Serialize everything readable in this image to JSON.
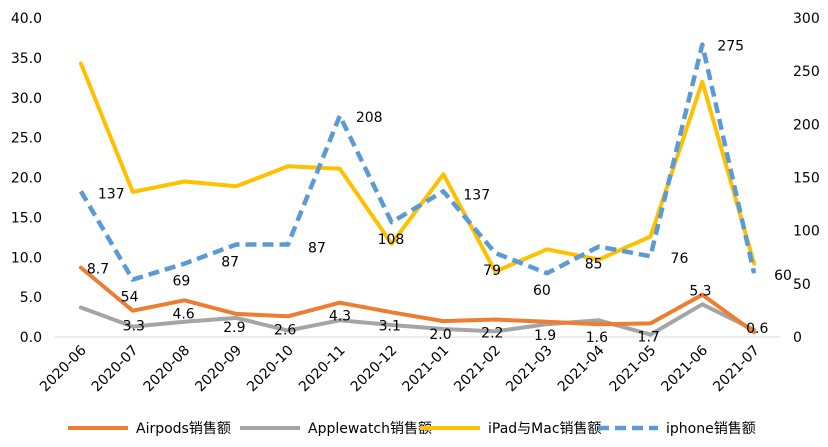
{
  "chart_data": {
    "type": "line",
    "title": "",
    "x": [
      "2020-06",
      "2020-07",
      "2020-08",
      "2020-09",
      "2020-10",
      "2020-11",
      "2020-12",
      "2021-01",
      "2021-02",
      "2021-03",
      "2021-04",
      "2021-05",
      "2021-06",
      "2021-07"
    ],
    "y_left": {
      "range": [
        0,
        40
      ],
      "ticks": [
        "0.0",
        "5.0",
        "10.0",
        "15.0",
        "20.0",
        "25.0",
        "30.0",
        "35.0",
        "40.0"
      ]
    },
    "y_right": {
      "range": [
        0,
        300
      ],
      "ticks": [
        "0",
        "50",
        "100",
        "150",
        "200",
        "250",
        "300"
      ]
    },
    "grid": false,
    "legend": "bottom",
    "series": [
      {
        "name": "Airpods销售额",
        "axis": "left",
        "color": "#ED7D31",
        "style": "solid",
        "values": [
          8.7,
          3.3,
          4.6,
          2.9,
          2.6,
          4.3,
          3.1,
          2.0,
          2.2,
          1.9,
          1.6,
          1.7,
          5.3,
          0.6
        ],
        "labels": [
          "8.7",
          "3.3",
          "4.6",
          "2.9",
          "2.6",
          "4.3",
          "3.1",
          "2.0",
          "2.2",
          "1.9",
          "1.6",
          "1.7",
          "5.3",
          "0.6"
        ]
      },
      {
        "name": "Applewatch销售额",
        "axis": "left",
        "color": "#A5A5A5",
        "style": "solid",
        "values": [
          3.7,
          1.3,
          1.9,
          2.4,
          0.8,
          2.1,
          1.5,
          1.0,
          0.7,
          1.6,
          2.1,
          0.3,
          4.1,
          0.9
        ]
      },
      {
        "name": "iPad与Mac销售额",
        "axis": "left",
        "color": "#FFC000",
        "style": "solid",
        "values": [
          34.3,
          18.2,
          19.5,
          18.9,
          21.4,
          21.1,
          11.7,
          20.4,
          8.2,
          11.0,
          9.7,
          12.6,
          32.0,
          9.2
        ]
      },
      {
        "name": "iphone销售额",
        "axis": "right",
        "color": "#5B9BD5",
        "style": "dashed",
        "values": [
          137,
          54,
          69,
          87,
          87,
          208,
          108,
          137,
          79,
          60,
          85,
          76,
          275,
          60
        ],
        "labels": [
          "137",
          "54",
          "69",
          "87",
          "87",
          "208",
          "108",
          "137",
          "79",
          "60",
          "85",
          "76",
          "275",
          "60"
        ]
      }
    ]
  }
}
